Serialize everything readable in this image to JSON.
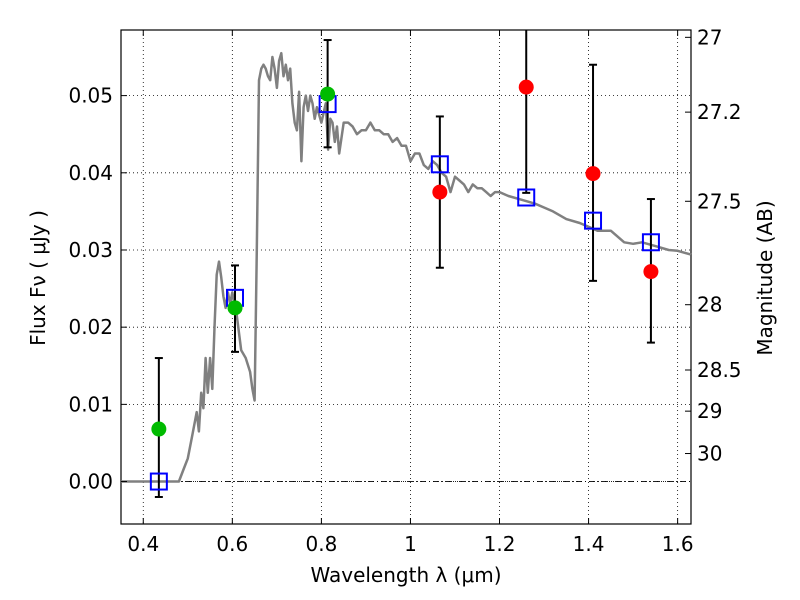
{
  "chart_data": {
    "type": "scatter",
    "xlabel": "Wavelength  λ (μm)",
    "ylabel": "Flux  Fν  ( μJy )",
    "ylabel_right": "Magnitude (AB)",
    "xlim": [
      0.35,
      1.63
    ],
    "ylim": [
      -0.0055,
      0.0585
    ],
    "grid": true,
    "x_ticks": [
      0.4,
      0.6,
      0.8,
      1.0,
      1.2,
      1.4,
      1.6
    ],
    "x_tick_labels": [
      "0.4",
      "0.6",
      "0.8",
      "1",
      "1.2",
      "1.4",
      "1.6"
    ],
    "y_ticks": [
      0.0,
      0.01,
      0.02,
      0.03,
      0.04,
      0.05
    ],
    "y_tick_labels": [
      "0.00",
      "0.01",
      "0.02",
      "0.03",
      "0.04",
      "0.05"
    ],
    "right_ticks": [
      {
        "label": "27",
        "flux": 0.05755
      },
      {
        "label": "27.2",
        "flux": 0.04786
      },
      {
        "label": "27.5",
        "flux": 0.03631
      },
      {
        "label": "28",
        "flux": 0.02291
      },
      {
        "label": "28.5",
        "flux": 0.01445
      },
      {
        "label": "29",
        "flux": 0.00912
      },
      {
        "label": "30",
        "flux": 0.00363
      }
    ],
    "colors": {
      "model": "#808080",
      "model_points": "#0000ff",
      "green_points": "#00bb00",
      "red_points": "#ff0000",
      "errorbars": "#000000"
    },
    "series": [
      {
        "name": "model-spectrum",
        "kind": "line",
        "x": [
          0.35,
          0.48,
          0.49,
          0.5,
          0.51,
          0.52,
          0.525,
          0.53,
          0.535,
          0.54,
          0.545,
          0.55,
          0.555,
          0.56,
          0.565,
          0.57,
          0.575,
          0.58,
          0.585,
          0.59,
          0.595,
          0.6,
          0.61,
          0.62,
          0.63,
          0.64,
          0.645,
          0.65,
          0.655,
          0.66,
          0.665,
          0.67,
          0.675,
          0.68,
          0.685,
          0.69,
          0.695,
          0.7,
          0.705,
          0.71,
          0.715,
          0.72,
          0.725,
          0.73,
          0.735,
          0.74,
          0.745,
          0.75,
          0.755,
          0.76,
          0.765,
          0.77,
          0.775,
          0.78,
          0.785,
          0.79,
          0.8,
          0.81,
          0.815,
          0.82,
          0.825,
          0.83,
          0.835,
          0.84,
          0.85,
          0.86,
          0.87,
          0.88,
          0.89,
          0.9,
          0.91,
          0.92,
          0.93,
          0.94,
          0.95,
          0.96,
          0.97,
          0.98,
          0.99,
          1.0,
          1.01,
          1.02,
          1.03,
          1.04,
          1.05,
          1.06,
          1.07,
          1.08,
          1.09,
          1.1,
          1.11,
          1.12,
          1.13,
          1.14,
          1.15,
          1.16,
          1.17,
          1.18,
          1.19,
          1.2,
          1.22,
          1.25,
          1.28,
          1.3,
          1.32,
          1.35,
          1.38,
          1.4,
          1.42,
          1.45,
          1.48,
          1.5,
          1.52,
          1.55,
          1.58,
          1.6,
          1.63
        ],
        "y": [
          0.0,
          0.0,
          0.0015,
          0.003,
          0.006,
          0.009,
          0.0065,
          0.0115,
          0.0095,
          0.016,
          0.0115,
          0.016,
          0.012,
          0.02,
          0.0268,
          0.0285,
          0.0265,
          0.024,
          0.0225,
          0.0245,
          0.023,
          0.0245,
          0.0215,
          0.017,
          0.016,
          0.0142,
          0.012,
          0.0105,
          0.03,
          0.052,
          0.0535,
          0.054,
          0.0535,
          0.0525,
          0.052,
          0.055,
          0.0535,
          0.051,
          0.0545,
          0.0555,
          0.0525,
          0.054,
          0.052,
          0.0535,
          0.049,
          0.0465,
          0.0455,
          0.0505,
          0.0415,
          0.0485,
          0.05,
          0.048,
          0.05,
          0.049,
          0.047,
          0.0485,
          0.0465,
          0.049,
          0.043,
          0.047,
          0.0465,
          0.044,
          0.046,
          0.0425,
          0.0465,
          0.0465,
          0.046,
          0.045,
          0.0455,
          0.0455,
          0.0465,
          0.0455,
          0.0455,
          0.045,
          0.045,
          0.044,
          0.0445,
          0.0435,
          0.0435,
          0.0415,
          0.0425,
          0.0425,
          0.041,
          0.0405,
          0.0415,
          0.041,
          0.04,
          0.0395,
          0.0375,
          0.0395,
          0.039,
          0.0385,
          0.0375,
          0.0385,
          0.038,
          0.038,
          0.0375,
          0.037,
          0.0375,
          0.0375,
          0.037,
          0.0365,
          0.036,
          0.0355,
          0.035,
          0.034,
          0.0335,
          0.033,
          0.0325,
          0.0325,
          0.031,
          0.0308,
          0.031,
          0.0305,
          0.03,
          0.0299,
          0.0294
        ]
      },
      {
        "name": "model-photometry",
        "kind": "markers",
        "marker": "square",
        "x": [
          0.435,
          0.606,
          0.814,
          1.066,
          1.26,
          1.41,
          1.54
        ],
        "y": [
          0.0,
          0.0238,
          0.0489,
          0.0411,
          0.0368,
          0.0338,
          0.031
        ]
      },
      {
        "name": "observed-green",
        "kind": "markers",
        "marker": "circle",
        "x": [
          0.435,
          0.606,
          0.814
        ],
        "y": [
          0.0068,
          0.0225,
          0.0502
        ],
        "yerr_low": [
          0.0088,
          0.0057,
          0.0069
        ],
        "yerr_high": [
          0.0092,
          0.0055,
          0.007
        ]
      },
      {
        "name": "observed-red",
        "kind": "markers",
        "marker": "circle",
        "x": [
          1.066,
          1.26,
          1.41,
          1.54
        ],
        "y": [
          0.0375,
          0.0511,
          0.0399,
          0.0272
        ],
        "yerr_low": [
          0.0098,
          0.0137,
          0.0139,
          0.0092
        ],
        "yerr_high": [
          0.0098,
          0.0135,
          0.0141,
          0.0094
        ]
      }
    ],
    "reference_line": {
      "y": 0.0,
      "style": "dash-dot"
    }
  }
}
